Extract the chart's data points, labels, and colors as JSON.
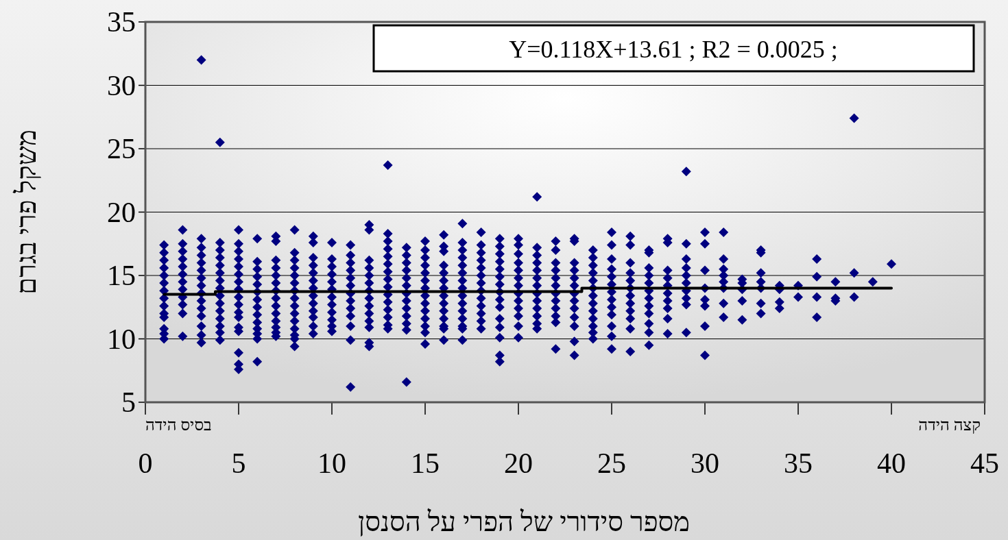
{
  "chart_data": {
    "type": "scatter",
    "xlabel": "מספר סידורי של הפרי על הסנסן",
    "ylabel": "משקל פרי בגרם",
    "xlim": [
      0,
      45
    ],
    "xticks": [
      0,
      5,
      10,
      15,
      20,
      25,
      30,
      35,
      40,
      45
    ],
    "ylim": [
      5,
      35
    ],
    "yticks": [
      5,
      10,
      15,
      20,
      25,
      30,
      35
    ],
    "grid": "y",
    "marker": "diamond",
    "annotations": [
      "Y=0.118X+13.61 ; R2 = 0.0025 ;",
      "בסיס הידה",
      "קצה הידה"
    ],
    "series": [
      {
        "type": "scatter",
        "color": "#000080",
        "x": [
          1,
          1,
          1,
          1,
          1,
          1,
          1,
          1,
          1,
          1,
          1,
          1,
          1,
          1,
          2,
          2,
          2,
          2,
          2,
          2,
          2,
          2,
          2,
          2,
          2,
          2,
          3,
          3,
          3,
          3,
          3,
          3,
          3,
          3,
          3,
          3,
          3,
          3,
          3,
          3,
          3,
          4,
          4,
          4,
          4,
          4,
          4,
          4,
          4,
          4,
          4,
          4,
          4,
          4,
          4,
          4,
          5,
          5,
          5,
          5,
          5,
          5,
          5,
          5,
          5,
          5,
          5,
          5,
          5,
          5,
          5,
          5,
          5,
          6,
          6,
          6,
          6,
          6,
          6,
          6,
          6,
          6,
          6,
          6,
          6,
          6,
          6,
          7,
          7,
          7,
          7,
          7,
          7,
          7,
          7,
          7,
          7,
          7,
          7,
          7,
          7,
          8,
          8,
          8,
          8,
          8,
          8,
          8,
          8,
          8,
          8,
          8,
          8,
          8,
          8,
          8,
          9,
          9,
          9,
          9,
          9,
          9,
          9,
          9,
          9,
          9,
          9,
          9,
          9,
          10,
          10,
          10,
          10,
          10,
          10,
          10,
          10,
          10,
          10,
          10,
          10,
          11,
          11,
          11,
          11,
          11,
          11,
          11,
          11,
          11,
          11,
          11,
          11,
          11,
          12,
          12,
          12,
          12,
          12,
          12,
          12,
          12,
          12,
          12,
          12,
          12,
          12,
          12,
          13,
          13,
          13,
          13,
          13,
          13,
          13,
          13,
          13,
          13,
          13,
          13,
          13,
          13,
          13,
          14,
          14,
          14,
          14,
          14,
          14,
          14,
          14,
          14,
          14,
          14,
          14,
          14,
          15,
          15,
          15,
          15,
          15,
          15,
          15,
          15,
          15,
          15,
          15,
          15,
          15,
          15,
          16,
          16,
          16,
          16,
          16,
          16,
          16,
          16,
          16,
          16,
          16,
          16,
          16,
          16,
          17,
          17,
          17,
          17,
          17,
          17,
          17,
          17,
          17,
          17,
          17,
          17,
          17,
          17,
          17,
          18,
          18,
          18,
          18,
          18,
          18,
          18,
          18,
          18,
          18,
          18,
          18,
          18,
          19,
          19,
          19,
          19,
          19,
          19,
          19,
          19,
          19,
          19,
          19,
          19,
          19,
          19,
          19,
          20,
          20,
          20,
          20,
          20,
          20,
          20,
          20,
          20,
          20,
          20,
          20,
          20,
          21,
          21,
          21,
          21,
          21,
          21,
          21,
          21,
          21,
          21,
          21,
          21,
          21,
          22,
          22,
          22,
          22,
          22,
          22,
          22,
          22,
          22,
          22,
          22,
          22,
          23,
          23,
          23,
          23,
          23,
          23,
          23,
          23,
          23,
          23,
          23,
          23,
          23,
          24,
          24,
          24,
          24,
          24,
          24,
          24,
          24,
          24,
          24,
          24,
          24,
          24,
          25,
          25,
          25,
          25,
          25,
          25,
          25,
          25,
          25,
          25,
          25,
          25,
          25,
          26,
          26,
          26,
          26,
          26,
          26,
          26,
          26,
          26,
          26,
          26,
          26,
          27,
          27,
          27,
          27,
          27,
          27,
          27,
          27,
          27,
          27,
          27,
          27,
          28,
          28,
          28,
          28,
          28,
          28,
          28,
          28,
          28,
          28,
          29,
          29,
          29,
          29,
          29,
          29,
          29,
          29,
          29,
          29,
          30,
          30,
          30,
          30,
          30,
          30,
          30,
          30,
          31,
          31,
          31,
          31,
          31,
          31,
          31,
          31,
          32,
          32,
          32,
          32,
          32,
          33,
          33,
          33,
          33,
          33,
          33,
          33,
          34,
          34,
          34,
          34,
          35,
          35,
          36,
          36,
          36,
          36,
          37,
          37,
          37,
          38,
          38,
          38,
          39,
          40
        ],
        "values": [
          17.4,
          16.8,
          16.2,
          15.6,
          15.0,
          14.4,
          13.8,
          13.2,
          12.6,
          12.0,
          11.7,
          10.8,
          10.4,
          10.0,
          18.6,
          17.5,
          16.9,
          16.3,
          15.7,
          15.1,
          14.5,
          13.9,
          13.3,
          12.7,
          12.0,
          10.2,
          32.0,
          17.9,
          17.2,
          16.6,
          16.0,
          15.4,
          14.8,
          14.2,
          13.6,
          13.0,
          12.4,
          11.8,
          11.0,
          10.3,
          9.7,
          25.5,
          17.6,
          17.0,
          16.4,
          15.8,
          15.2,
          14.6,
          14.0,
          13.4,
          12.8,
          12.2,
          11.6,
          11.0,
          10.5,
          9.9,
          18.6,
          17.5,
          16.9,
          16.3,
          15.7,
          15.1,
          14.5,
          13.9,
          13.3,
          12.7,
          12.1,
          11.7,
          10.9,
          10.6,
          8.9,
          8.0,
          7.6,
          17.9,
          16.1,
          15.5,
          14.9,
          14.3,
          13.7,
          13.1,
          12.5,
          11.9,
          11.3,
          10.8,
          10.4,
          10.0,
          8.2,
          18.1,
          17.7,
          16.2,
          15.6,
          15.0,
          14.4,
          13.8,
          13.2,
          12.6,
          12.0,
          11.4,
          10.9,
          10.5,
          10.2,
          18.6,
          16.8,
          16.2,
          15.6,
          15.0,
          14.4,
          13.8,
          13.2,
          12.6,
          12.0,
          11.4,
          10.8,
          10.3,
          10.0,
          9.4,
          18.1,
          17.6,
          16.4,
          15.8,
          15.2,
          14.6,
          14.0,
          13.4,
          12.8,
          12.2,
          11.7,
          11.0,
          10.4,
          17.6,
          16.3,
          15.7,
          15.1,
          14.5,
          13.9,
          13.3,
          12.7,
          12.1,
          11.5,
          11.0,
          10.6,
          17.4,
          16.6,
          16.0,
          15.4,
          14.8,
          14.2,
          13.6,
          13.0,
          12.4,
          11.8,
          11.0,
          9.9,
          6.2,
          19.0,
          18.6,
          16.2,
          15.6,
          15.0,
          14.4,
          13.8,
          13.2,
          12.6,
          12.0,
          11.4,
          10.9,
          9.7,
          9.4,
          23.7,
          18.3,
          17.7,
          17.1,
          16.5,
          15.9,
          15.3,
          14.7,
          14.1,
          13.5,
          12.9,
          12.3,
          11.7,
          11.1,
          10.8,
          17.2,
          16.6,
          16.0,
          15.4,
          14.8,
          14.2,
          13.6,
          13.0,
          12.4,
          11.8,
          11.2,
          10.7,
          6.6,
          17.7,
          17.0,
          16.4,
          15.8,
          15.2,
          14.6,
          14.0,
          13.4,
          12.8,
          12.2,
          11.6,
          11.0,
          10.5,
          9.6,
          18.2,
          17.3,
          16.9,
          15.8,
          15.2,
          14.6,
          14.0,
          13.4,
          12.8,
          12.2,
          11.6,
          11.0,
          10.8,
          9.9,
          19.1,
          17.6,
          17.0,
          16.4,
          15.8,
          15.2,
          14.6,
          14.0,
          13.4,
          12.8,
          12.2,
          11.6,
          11.0,
          10.8,
          9.9,
          18.4,
          17.4,
          16.8,
          16.2,
          15.6,
          15.0,
          14.4,
          13.8,
          13.2,
          12.6,
          12.0,
          11.4,
          10.8,
          17.9,
          17.3,
          16.7,
          16.1,
          15.5,
          14.9,
          14.3,
          13.7,
          13.1,
          12.5,
          11.6,
          10.9,
          10.1,
          8.7,
          8.2,
          17.9,
          17.4,
          16.7,
          16.0,
          15.4,
          14.8,
          14.2,
          13.6,
          13.0,
          12.4,
          11.8,
          11.0,
          10.1,
          21.2,
          17.2,
          16.6,
          16.0,
          15.4,
          14.8,
          14.2,
          13.6,
          13.0,
          12.4,
          11.8,
          11.2,
          10.8,
          17.7,
          17.0,
          16.0,
          15.4,
          14.8,
          14.2,
          13.6,
          13.0,
          12.4,
          11.8,
          11.3,
          9.2,
          17.9,
          17.7,
          16.0,
          15.4,
          14.8,
          14.2,
          13.6,
          13.0,
          12.4,
          11.7,
          11.0,
          9.8,
          8.7,
          17.0,
          16.4,
          15.8,
          15.2,
          14.6,
          14.0,
          13.4,
          12.8,
          12.2,
          11.6,
          11.0,
          10.5,
          10.0,
          18.4,
          17.4,
          16.3,
          15.5,
          14.9,
          14.3,
          13.7,
          13.1,
          12.5,
          11.9,
          11.0,
          10.2,
          9.2,
          18.1,
          17.4,
          16.0,
          15.2,
          14.6,
          14.0,
          13.4,
          12.8,
          12.2,
          11.6,
          10.8,
          9.0,
          17.0,
          16.8,
          15.6,
          15.0,
          14.4,
          13.8,
          13.2,
          12.6,
          12.0,
          11.2,
          10.5,
          9.5,
          17.9,
          17.6,
          15.4,
          14.8,
          14.2,
          13.6,
          13.0,
          12.4,
          11.6,
          10.4,
          23.2,
          17.5,
          16.3,
          15.6,
          15.0,
          14.4,
          13.8,
          13.2,
          12.7,
          10.5,
          18.4,
          17.5,
          15.4,
          14.0,
          13.1,
          12.6,
          11.0,
          8.7,
          18.4,
          16.3,
          15.5,
          15.0,
          14.5,
          14.0,
          12.8,
          11.7,
          14.7,
          14.4,
          13.9,
          13.0,
          11.5,
          17.0,
          16.8,
          15.2,
          14.5,
          14.0,
          12.8,
          12.0,
          14.2,
          13.9,
          12.9,
          12.4,
          14.2,
          13.3,
          16.3,
          14.9,
          13.3,
          11.7,
          14.5,
          13.2,
          13.0,
          27.4,
          15.2,
          13.3,
          14.5,
          15.9
        ]
      },
      {
        "type": "line",
        "color": "#000000",
        "line_style": "solid",
        "marker": "none",
        "x": [
          1,
          3.75,
          3.75,
          23.4,
          23.4,
          40
        ],
        "values": [
          13.52,
          13.52,
          13.73,
          13.73,
          14.0,
          14.0
        ]
      }
    ]
  }
}
